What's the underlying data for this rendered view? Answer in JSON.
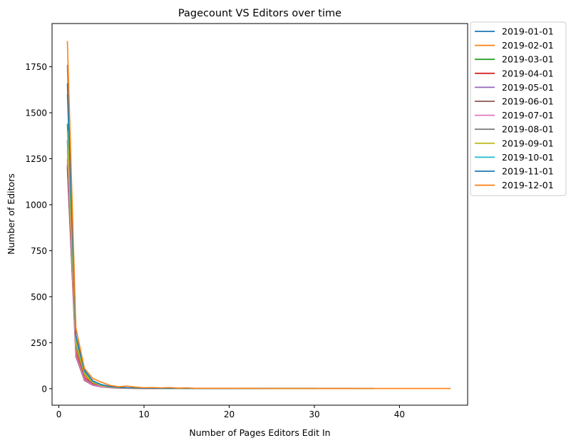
{
  "chart_data": {
    "type": "line",
    "title": "Pagecount VS Editors over time",
    "xlabel": "Number of Pages Editors Edit In",
    "ylabel": "Number of Editors",
    "xlim": [
      -0.8,
      48
    ],
    "ylim": [
      -90,
      1985
    ],
    "xticks": [
      0,
      10,
      20,
      30,
      40
    ],
    "yticks": [
      0,
      250,
      500,
      750,
      1000,
      1250,
      1500,
      1750
    ],
    "legend_position": "outside-right-top",
    "grid": false,
    "series": [
      {
        "name": "2019-01-01",
        "color": "#1f77b4",
        "x": [
          1,
          2,
          3,
          4,
          5,
          6,
          7,
          8,
          9,
          10,
          12,
          14,
          16,
          18,
          20,
          25,
          30,
          35,
          37
        ],
        "y": [
          1350,
          230,
          75,
          30,
          15,
          8,
          5,
          4,
          3,
          2,
          2,
          1,
          1,
          1,
          1,
          1,
          1,
          1,
          1
        ]
      },
      {
        "name": "2019-02-01",
        "color": "#ff7f0e",
        "x": [
          1,
          2,
          3,
          4,
          5,
          6,
          7,
          8,
          9,
          10,
          12,
          14,
          16,
          18,
          20,
          25,
          30
        ],
        "y": [
          1250,
          220,
          70,
          28,
          14,
          7,
          5,
          3,
          2,
          2,
          1,
          1,
          1,
          1,
          1,
          1,
          1
        ]
      },
      {
        "name": "2019-03-01",
        "color": "#2ca02c",
        "x": [
          1,
          2,
          3,
          4,
          5,
          6,
          7,
          8,
          9,
          10,
          12,
          14,
          16,
          18,
          20
        ],
        "y": [
          1440,
          240,
          80,
          32,
          16,
          9,
          6,
          4,
          3,
          2,
          2,
          1,
          1,
          1,
          1
        ]
      },
      {
        "name": "2019-04-01",
        "color": "#d62728",
        "x": [
          1,
          2,
          3,
          4,
          5,
          6,
          7,
          8,
          9,
          10,
          12,
          14,
          16,
          18,
          20
        ],
        "y": [
          1210,
          200,
          60,
          25,
          12,
          7,
          4,
          3,
          2,
          2,
          1,
          1,
          1,
          1,
          1
        ]
      },
      {
        "name": "2019-05-01",
        "color": "#9467bd",
        "x": [
          1,
          2,
          3,
          4,
          5,
          6,
          7,
          8,
          9,
          10,
          12,
          14,
          16,
          18,
          20
        ],
        "y": [
          1220,
          190,
          55,
          22,
          11,
          6,
          4,
          3,
          2,
          2,
          1,
          1,
          1,
          1,
          1
        ]
      },
      {
        "name": "2019-06-01",
        "color": "#8c564b",
        "x": [
          1,
          2,
          3,
          4,
          5,
          6,
          7,
          8,
          9,
          10,
          12,
          14,
          16,
          18
        ],
        "y": [
          1200,
          175,
          45,
          18,
          9,
          5,
          3,
          2,
          2,
          1,
          1,
          1,
          1,
          1
        ]
      },
      {
        "name": "2019-07-01",
        "color": "#e377c2",
        "x": [
          1,
          2,
          3,
          4,
          5,
          6,
          7,
          8,
          9,
          10,
          12,
          14,
          16
        ],
        "y": [
          1300,
          185,
          50,
          20,
          10,
          6,
          4,
          3,
          2,
          2,
          1,
          1,
          1
        ]
      },
      {
        "name": "2019-08-01",
        "color": "#7f7f7f",
        "x": [
          1,
          2,
          3,
          4,
          5,
          6,
          7,
          8,
          9,
          10,
          12,
          14,
          16,
          18,
          20,
          25,
          30,
          35
        ],
        "y": [
          1760,
          260,
          85,
          35,
          17,
          9,
          6,
          4,
          3,
          2,
          2,
          1,
          1,
          1,
          1,
          1,
          1,
          1
        ]
      },
      {
        "name": "2019-09-01",
        "color": "#bcbd22",
        "x": [
          1,
          2,
          3,
          4,
          5,
          6,
          7,
          8,
          9,
          10,
          12,
          14,
          16,
          18,
          20,
          25,
          30
        ],
        "y": [
          1400,
          250,
          82,
          33,
          16,
          9,
          6,
          4,
          3,
          2,
          2,
          1,
          1,
          1,
          1,
          1,
          1
        ]
      },
      {
        "name": "2019-10-01",
        "color": "#17becf",
        "x": [
          1,
          2,
          3,
          4,
          5,
          6,
          7,
          8,
          9,
          10,
          12,
          14,
          16,
          18,
          20,
          25,
          30
        ],
        "y": [
          1600,
          280,
          95,
          40,
          20,
          11,
          7,
          5,
          4,
          3,
          2,
          2,
          1,
          1,
          1,
          1,
          1
        ]
      },
      {
        "name": "2019-11-01",
        "color": "#1f77b4",
        "x": [
          1,
          2,
          3,
          4,
          5,
          6,
          7,
          8,
          9,
          10,
          12,
          14,
          16,
          18,
          20,
          25,
          30
        ],
        "y": [
          1660,
          290,
          100,
          42,
          22,
          12,
          8,
          5,
          4,
          3,
          2,
          2,
          1,
          1,
          1,
          1,
          1
        ]
      },
      {
        "name": "2019-12-01",
        "color": "#ff7f0e",
        "x": [
          1,
          2,
          3,
          4,
          5,
          6,
          7,
          8,
          9,
          10,
          11,
          12,
          13,
          14,
          15,
          16,
          18,
          20,
          25,
          30,
          35,
          40,
          46
        ],
        "y": [
          1890,
          330,
          110,
          55,
          35,
          18,
          10,
          14,
          8,
          5,
          6,
          4,
          6,
          3,
          4,
          2,
          2,
          2,
          1,
          1,
          1,
          1,
          1
        ]
      }
    ]
  }
}
